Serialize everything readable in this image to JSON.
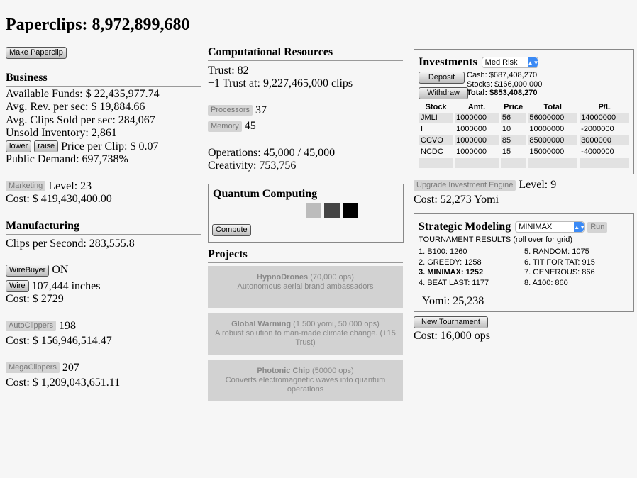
{
  "title": "Paperclips: 8,972,899,680",
  "make_paperclip": "Make Paperclip",
  "business": {
    "heading": "Business",
    "funds": "Available Funds: $ 22,435,977.74",
    "rev": "Avg. Rev. per sec: $ 19,884.66",
    "sold": "Avg. Clips Sold per sec: 284,067",
    "inventory": "Unsold Inventory: 2,861",
    "lower": "lower",
    "raise": "raise",
    "price": "Price per Clip: $ 0.07",
    "demand": "Public Demand: 697,738%",
    "marketing": "Marketing",
    "level": "Level: 23",
    "cost": "Cost: $ 419,430,400.00"
  },
  "manufacturing": {
    "heading": "Manufacturing",
    "cps": "Clips per Second: 283,555.8",
    "wirebuyer": "WireBuyer",
    "wirebuyer_state": "ON",
    "wire": "Wire",
    "wire_amount": "107,444 inches",
    "wire_cost": "Cost: $ 2729",
    "autoclippers": "AutoClippers",
    "autoclippers_count": "198",
    "autoclippers_cost": "Cost: $ 156,946,514.47",
    "megaclippers": "MegaClippers",
    "megaclippers_count": "207",
    "megaclippers_cost": "Cost: $ 1,209,043,651.11"
  },
  "computational": {
    "heading": "Computational Resources",
    "trust": "Trust: 82",
    "next_trust": "+1 Trust at: 9,227,465,000 clips",
    "processors": "Processors",
    "processors_count": "37",
    "memory": "Memory",
    "memory_count": "45",
    "operations": "Operations: 45,000 / 45,000",
    "creativity": "Creativity: 753,756"
  },
  "quantum": {
    "heading": "Quantum Computing",
    "chips": [
      "#bcbcbc",
      "#444444",
      "#000000"
    ],
    "compute": "Compute"
  },
  "projects": {
    "heading": "Projects",
    "items": [
      {
        "name": "HypnoDrones",
        "cost": " (70,000 ops)",
        "desc": "Autonomous aerial brand ambassadors"
      },
      {
        "name": "Global Warming",
        "cost": " (1,500 yomi, 50,000 ops)",
        "desc": "A robust solution to man-made climate change. (+15 Trust)"
      },
      {
        "name": "Photonic Chip",
        "cost": " (50000 ops)",
        "desc": "Converts electromagnetic waves into quantum operations"
      }
    ]
  },
  "investments": {
    "heading": "Investments",
    "risk": "Med Risk",
    "deposit": "Deposit",
    "withdraw": "Withdraw",
    "cash": "Cash: $687,408,270",
    "stocks": "Stocks: $166,000,000",
    "total": "Total: $853,408,270",
    "columns": [
      "Stock",
      "Amt.",
      "Price",
      "Total",
      "P/L"
    ],
    "rows": [
      [
        "JMLI",
        "1000000",
        "56",
        "56000000",
        "14000000"
      ],
      [
        "I",
        "1000000",
        "10",
        "10000000",
        "-2000000"
      ],
      [
        "CCVO",
        "1000000",
        "85",
        "85000000",
        "3000000"
      ],
      [
        "NCDC",
        "1000000",
        "15",
        "15000000",
        "-4000000"
      ],
      [
        "",
        "",
        "",
        "",
        ""
      ]
    ],
    "upgrade": "Upgrade Investment Engine",
    "level": "Level: 9",
    "cost": "Cost: 52,273 Yomi"
  },
  "strategic": {
    "heading": "Strategic Modeling",
    "strategy": "MINIMAX",
    "run": "Run",
    "results_label": "TOURNAMENT RESULTS (roll over for grid)",
    "results": [
      "1. B100: 1260",
      "2. GREEDY: 1258",
      "3. MINIMAX: 1252",
      "4. BEAT LAST: 1177",
      "5. RANDOM: 1075",
      "6. TIT FOR TAT: 915",
      "7. GENEROUS: 866",
      "8. A100: 860"
    ],
    "yomi": "Yomi: 25,238",
    "new_tournament": "New Tournament",
    "cost": "Cost: 16,000 ops"
  }
}
